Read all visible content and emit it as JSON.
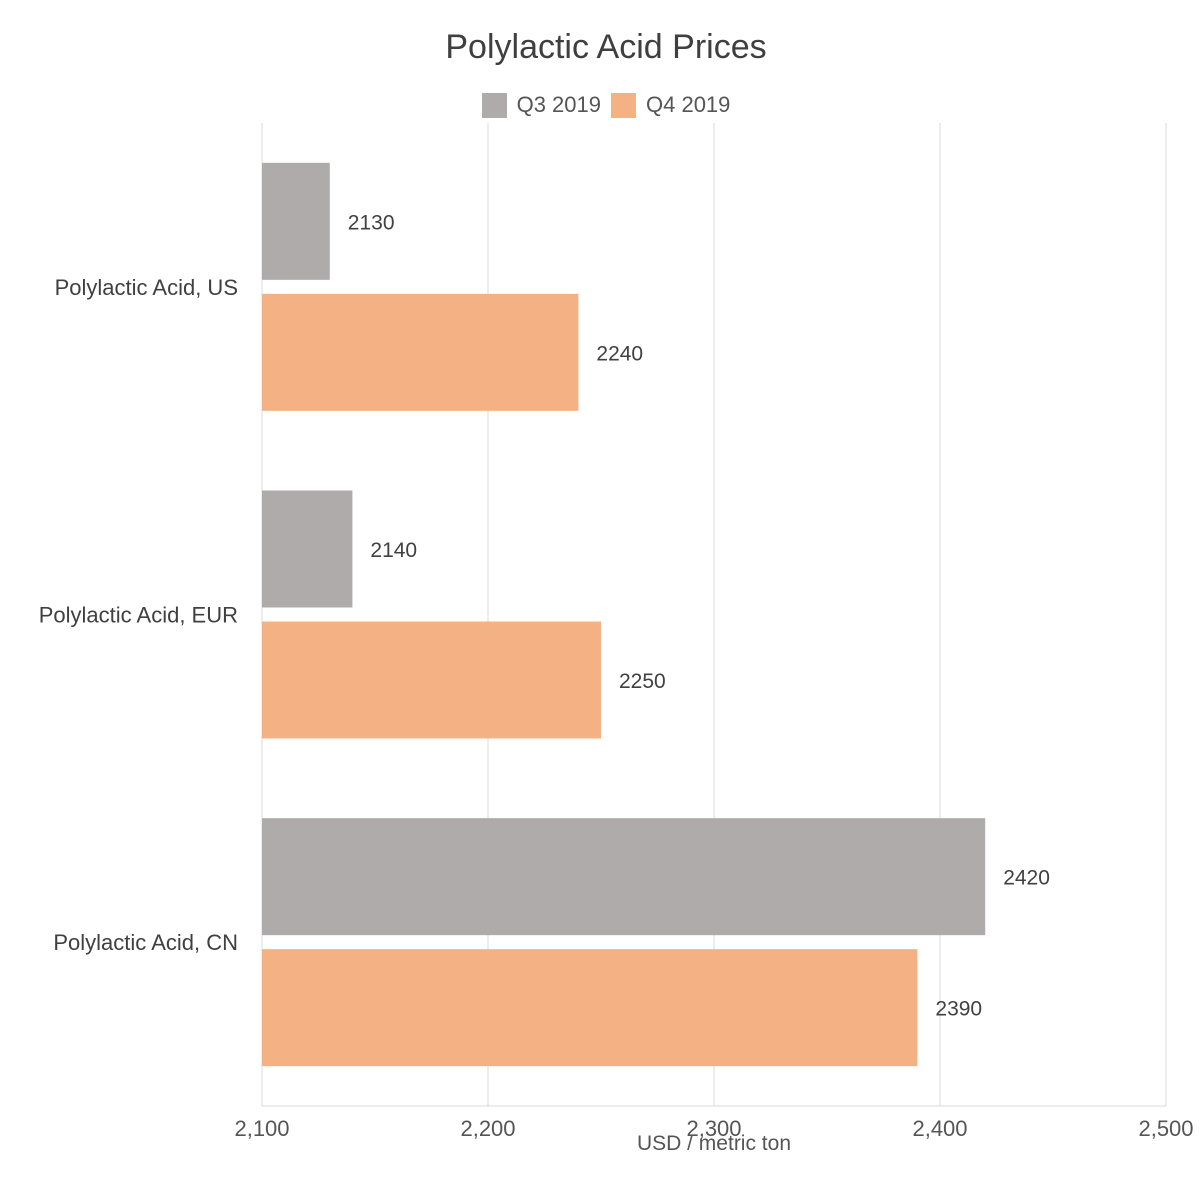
{
  "chart_data": {
    "type": "bar",
    "orientation": "horizontal",
    "title": "Polylactic Acid Prices",
    "xlabel": "USD / metric ton",
    "ylabel": "",
    "xlim": [
      2100,
      2500
    ],
    "xticks": [
      2100,
      2200,
      2300,
      2400,
      2500
    ],
    "xtick_labels": [
      "2,100",
      "2,200",
      "2,300",
      "2,400",
      "2,500"
    ],
    "categories": [
      "Polylactic Acid, US",
      "Polylactic Acid, EUR",
      "Polylactic Acid, CN"
    ],
    "series": [
      {
        "name": "Q3 2019",
        "color": "#afabab",
        "values": [
          2130,
          2140,
          2420
        ]
      },
      {
        "name": "Q4 2019",
        "color": "#f4b183",
        "values": [
          2240,
          2250,
          2390
        ]
      }
    ],
    "legend_position": "top",
    "grid": "vertical",
    "data_labels": true
  }
}
